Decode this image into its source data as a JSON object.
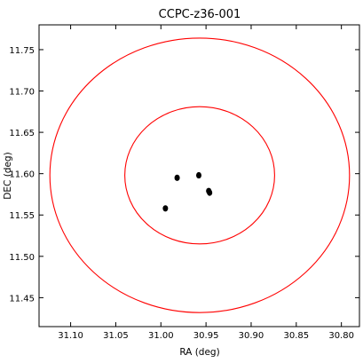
{
  "chart_data": {
    "type": "scatter",
    "title": "CCPC-z36-001",
    "xlabel": "RA (deg)",
    "ylabel": "DEC (deg)",
    "xlim": [
      31.135,
      30.78
    ],
    "ylim": [
      11.415,
      11.78
    ],
    "x_inverted": true,
    "grid": false,
    "x_ticks": [
      "31.10",
      "31.05",
      "31.00",
      "30.95",
      "30.90",
      "30.85",
      "30.80"
    ],
    "y_ticks": [
      "11.45",
      "11.50",
      "11.55",
      "11.60",
      "11.65",
      "11.70",
      "11.75"
    ],
    "circles": [
      {
        "center_ra": 30.957,
        "center_dec": 11.598,
        "radius_deg": 0.083,
        "color": "#ff0000"
      },
      {
        "center_ra": 30.957,
        "center_dec": 11.598,
        "radius_deg": 0.166,
        "color": "#ff0000"
      }
    ],
    "points": [
      {
        "ra": 30.982,
        "dec": 11.595
      },
      {
        "ra": 30.958,
        "dec": 11.598
      },
      {
        "ra": 30.947,
        "dec": 11.579
      },
      {
        "ra": 30.946,
        "dec": 11.577
      },
      {
        "ra": 30.995,
        "dec": 11.558
      }
    ],
    "point_color": "#000000",
    "frame_color": "#000000"
  }
}
